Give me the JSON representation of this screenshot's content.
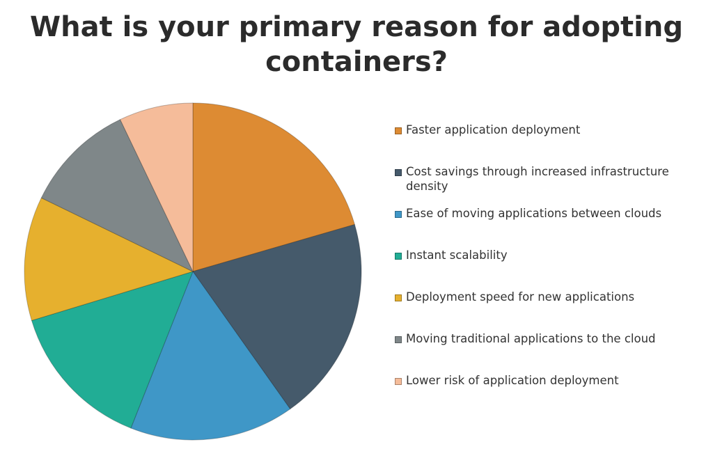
{
  "chart_data": {
    "type": "pie",
    "title": "What is your primary reason for adopting containers?",
    "categories": [
      "Faster application deployment",
      "Cost savings through increased infrastructure density",
      "Ease of moving applications between clouds",
      "Instant scalability",
      "Deployment speed for new applications",
      "Moving traditional applications to the cloud",
      "Lower risk of application deployment"
    ],
    "values": [
      20.5,
      19.7,
      15.8,
      14.3,
      11.9,
      10.7,
      7.1
    ],
    "colors": [
      "#dd8b33",
      "#455a6b",
      "#3f97c7",
      "#21ad95",
      "#e6b02e",
      "#7f8789",
      "#f5bc9a"
    ],
    "legend": "right"
  }
}
